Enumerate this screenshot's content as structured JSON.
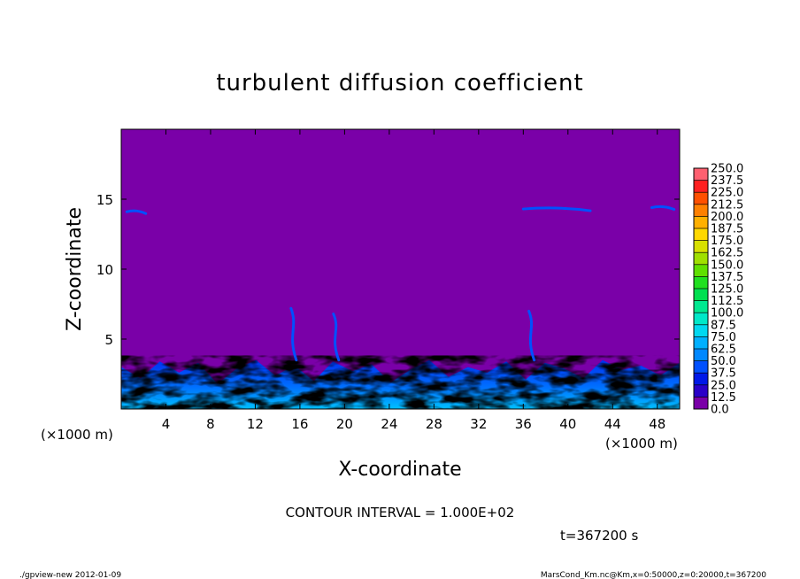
{
  "chart_data": {
    "type": "heatmap",
    "title": "turbulent diffusion coefficient",
    "xlabel": "X-coordinate",
    "ylabel": "Z-coordinate",
    "x_unit_label": "(×1000 m)",
    "y_unit_label": "(×1000 m)",
    "xlim": [
      0,
      50
    ],
    "ylim": [
      0,
      20
    ],
    "x_ticks": [
      4,
      8,
      12,
      16,
      20,
      24,
      28,
      32,
      36,
      40,
      44,
      48
    ],
    "y_ticks": [
      5,
      10,
      15
    ],
    "x_tick_labels": [
      "4",
      "8",
      "12",
      "16",
      "20",
      "24",
      "28",
      "32",
      "36",
      "40",
      "44",
      "48"
    ],
    "y_tick_labels": [
      "5",
      "10",
      "15"
    ],
    "colorbar": {
      "levels": [
        0.0,
        12.5,
        25.0,
        37.5,
        50.0,
        62.5,
        75.0,
        87.5,
        100.0,
        112.5,
        125.0,
        137.5,
        150.0,
        162.5,
        175.0,
        187.5,
        200.0,
        212.5,
        225.0,
        237.5,
        250.0
      ],
      "level_labels": [
        "0.0",
        "12.5",
        "25.0",
        "37.5",
        "50.0",
        "62.5",
        "75.0",
        "87.5",
        "100.0",
        "112.5",
        "125.0",
        "137.5",
        "150.0",
        "162.5",
        "175.0",
        "187.5",
        "200.0",
        "212.5",
        "225.0",
        "237.5",
        "250.0"
      ],
      "colors": [
        "#7a00a8",
        "#2a00c8",
        "#0018e8",
        "#0050ff",
        "#0088ff",
        "#00b0ff",
        "#00d8f0",
        "#00e8c8",
        "#00e890",
        "#00e050",
        "#20e020",
        "#60e000",
        "#a0e000",
        "#d8e000",
        "#ffd800",
        "#ffb000",
        "#ff8000",
        "#ff5000",
        "#ff2020",
        "#ff6070"
      ]
    },
    "contour_interval_text": "CONTOUR INTERVAL = 1.000E+02",
    "time_text": "t=367200 s",
    "background_value": 0.0,
    "features": [
      {
        "kind": "turbulent_boundary_layer",
        "x_range": [
          0,
          50
        ],
        "top_z": 3.5,
        "peak_value_range": [
          50,
          100
        ]
      },
      {
        "kind": "plume_filament",
        "x": 15.2,
        "z_range": [
          3.5,
          7.2
        ]
      },
      {
        "kind": "plume_filament",
        "x": 19.0,
        "z_range": [
          3.5,
          6.8
        ]
      },
      {
        "kind": "plume_filament",
        "x": 36.5,
        "z_range": [
          3.5,
          7.0
        ]
      },
      {
        "kind": "upper_layer_patch",
        "x_range": [
          0.5,
          2.2
        ],
        "z": 14.1
      },
      {
        "kind": "upper_layer_patch",
        "x_range": [
          36.0,
          42.0
        ],
        "z": 14.3
      },
      {
        "kind": "upper_layer_patch",
        "x_range": [
          47.5,
          49.5
        ],
        "z": 14.4
      }
    ]
  },
  "footer": {
    "left": "./gpview-new   2012-01-09",
    "right": "MarsCond_Km.nc@Km,x=0:50000,z=0:20000,t=367200"
  }
}
